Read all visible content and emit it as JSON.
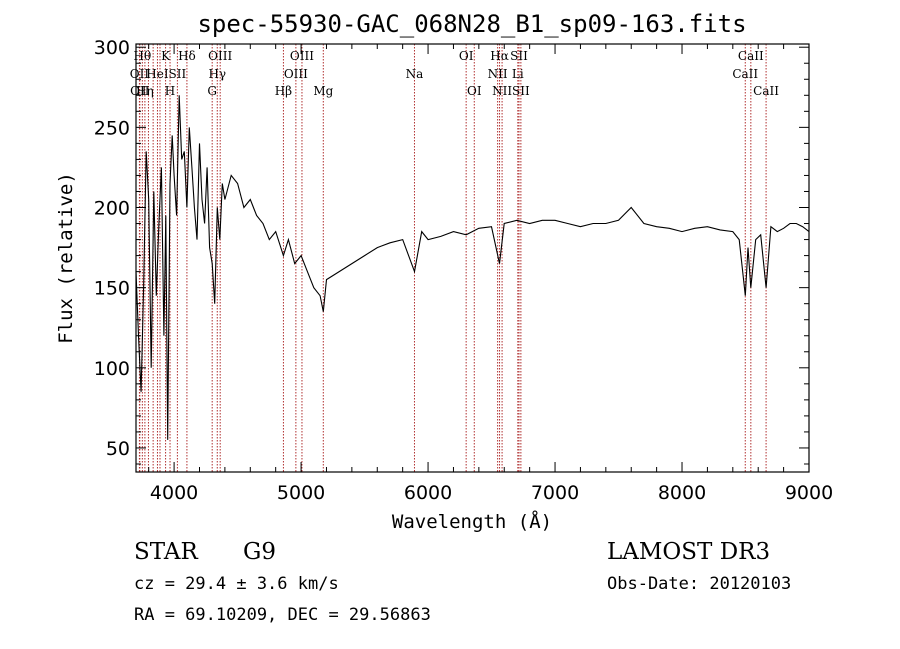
{
  "chart_data": {
    "type": "line",
    "title": "spec-55930-GAC_068N28_B1_sp09-163.fits",
    "xlabel": "Wavelength (Å)",
    "ylabel": "Flux (relative)",
    "xlim": [
      3700,
      9000
    ],
    "ylim": [
      35,
      302
    ],
    "x_ticks": [
      4000,
      5000,
      6000,
      7000,
      8000,
      9000
    ],
    "y_ticks": [
      50,
      100,
      150,
      200,
      250,
      300
    ],
    "grid": false,
    "series": [
      {
        "x": [
          3700,
          3720,
          3740,
          3760,
          3780,
          3800,
          3820,
          3840,
          3860,
          3880,
          3900,
          3920,
          3935,
          3950,
          3968,
          3985,
          4000,
          4020,
          4040,
          4060,
          4080,
          4101,
          4120,
          4140,
          4160,
          4180,
          4200,
          4220,
          4240,
          4260,
          4280,
          4300,
          4320,
          4340,
          4360,
          4380,
          4400,
          4450,
          4500,
          4550,
          4600,
          4650,
          4700,
          4750,
          4800,
          4861,
          4900,
          4950,
          5000,
          5050,
          5100,
          5150,
          5175,
          5200,
          5300,
          5400,
          5500,
          5600,
          5700,
          5800,
          5893,
          5950,
          6000,
          6100,
          6200,
          6300,
          6400,
          6500,
          6563,
          6600,
          6700,
          6800,
          6900,
          7000,
          7100,
          7200,
          7300,
          7400,
          7500,
          7600,
          7700,
          7800,
          7900,
          8000,
          8100,
          8200,
          8300,
          8400,
          8450,
          8498,
          8520,
          8542,
          8580,
          8620,
          8662,
          8700,
          8750,
          8800,
          8850,
          8900,
          8950,
          9000
        ],
        "values": [
          160,
          120,
          85,
          150,
          235,
          205,
          100,
          210,
          145,
          190,
          225,
          120,
          195,
          55,
          215,
          245,
          220,
          195,
          270,
          230,
          235,
          200,
          250,
          225,
          200,
          180,
          240,
          205,
          190,
          225,
          175,
          165,
          140,
          200,
          180,
          215,
          205,
          220,
          215,
          200,
          205,
          195,
          190,
          180,
          185,
          170,
          180,
          165,
          170,
          160,
          150,
          145,
          135,
          155,
          160,
          165,
          170,
          175,
          178,
          180,
          160,
          185,
          180,
          182,
          185,
          183,
          187,
          188,
          165,
          190,
          192,
          190,
          192,
          192,
          190,
          188,
          190,
          190,
          192,
          200,
          190,
          188,
          187,
          185,
          187,
          188,
          186,
          185,
          180,
          145,
          175,
          150,
          180,
          183,
          150,
          188,
          185,
          187,
          190,
          190,
          188,
          185
        ]
      }
    ],
    "lines": [
      {
        "wl": 3727,
        "label": "OII",
        "row": 1
      },
      {
        "wl": 3730,
        "label": "OII",
        "row": 2
      },
      {
        "wl": 3750,
        "label": "Hθ",
        "row": 0
      },
      {
        "wl": 3770,
        "label": "Hη",
        "row": 2
      },
      {
        "wl": 3798,
        "label": "",
        "row": 0
      },
      {
        "wl": 3835,
        "label": "",
        "row": 0
      },
      {
        "wl": 3869,
        "label": "HeI",
        "row": 1
      },
      {
        "wl": 3889,
        "label": "",
        "row": 0
      },
      {
        "wl": 3933,
        "label": "K",
        "row": 0
      },
      {
        "wl": 3968,
        "label": "H",
        "row": 2
      },
      {
        "wl": 4026,
        "label": "SII",
        "row": 1
      },
      {
        "wl": 4101,
        "label": "Hδ",
        "row": 0
      },
      {
        "wl": 4300,
        "label": "G",
        "row": 2
      },
      {
        "wl": 4340,
        "label": "Hγ",
        "row": 1
      },
      {
        "wl": 4363,
        "label": "OIII",
        "row": 0
      },
      {
        "wl": 4861,
        "label": "Hβ",
        "row": 2
      },
      {
        "wl": 4959,
        "label": "OIII",
        "row": 1
      },
      {
        "wl": 5007,
        "label": "OIII",
        "row": 0
      },
      {
        "wl": 5175,
        "label": "Mg",
        "row": 2
      },
      {
        "wl": 5893,
        "label": "Na",
        "row": 1
      },
      {
        "wl": 6300,
        "label": "OI",
        "row": 0
      },
      {
        "wl": 6364,
        "label": "OI",
        "row": 2
      },
      {
        "wl": 6548,
        "label": "NII",
        "row": 1
      },
      {
        "wl": 6563,
        "label": "Hα",
        "row": 0
      },
      {
        "wl": 6583,
        "label": "NII",
        "row": 2
      },
      {
        "wl": 6707,
        "label": "Li",
        "row": 1
      },
      {
        "wl": 6716,
        "label": "SII",
        "row": 0
      },
      {
        "wl": 6731,
        "label": "SII",
        "row": 2
      },
      {
        "wl": 8498,
        "label": "CaII",
        "row": 1
      },
      {
        "wl": 8542,
        "label": "CaII",
        "row": 0
      },
      {
        "wl": 8662,
        "label": "CaII",
        "row": 2
      }
    ]
  },
  "info": {
    "object_class": "STAR",
    "subclass": "G9",
    "survey": "LAMOST DR3",
    "cz": "cz = 29.4 ± 3.6 km/s",
    "obs_date": "Obs-Date: 20120103",
    "coords": "RA =  69.10209, DEC =  29.56863"
  },
  "colors": {
    "spectrum": "#000000",
    "line_markers": "#b03030"
  }
}
